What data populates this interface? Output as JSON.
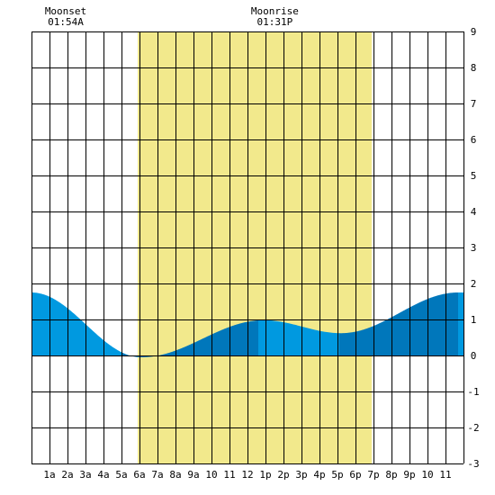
{
  "chart_data": {
    "type": "area",
    "x_unit": "hour",
    "xlim": [
      0,
      24
    ],
    "ylim": [
      -3,
      9
    ],
    "x_tick_labels": [
      "1a",
      "2a",
      "3a",
      "4a",
      "5a",
      "6a",
      "7a",
      "8a",
      "9a",
      "10",
      "11",
      "12",
      "1p",
      "2p",
      "3p",
      "4p",
      "5p",
      "6p",
      "7p",
      "8p",
      "9p",
      "10",
      "11"
    ],
    "y_ticks": [
      -3,
      -2,
      -1,
      0,
      1,
      2,
      3,
      4,
      5,
      6,
      7,
      8,
      9
    ],
    "daylight": {
      "start": 5.9,
      "end": 18.9,
      "color": "#f2e98c"
    },
    "moon_events": [
      {
        "label": "Moonset",
        "time": "01:54A",
        "hour": 1.9
      },
      {
        "label": "Moonrise",
        "time": "01:31P",
        "hour": 13.52
      }
    ],
    "tide_extremes": [
      {
        "hour": 0.0,
        "height": 1.75
      },
      {
        "hour": 6.1,
        "height": -0.05
      },
      {
        "hour": 12.9,
        "height": 0.98
      },
      {
        "hour": 17.2,
        "height": 0.62
      },
      {
        "hour": 23.7,
        "height": 1.75
      }
    ],
    "bands": [
      {
        "start": 0.0,
        "end": 5.0,
        "color": "#0099e0"
      },
      {
        "start": 5.0,
        "end": 12.6,
        "color": "#0077bb"
      },
      {
        "start": 12.6,
        "end": 17.1,
        "color": "#0099e0"
      },
      {
        "start": 17.1,
        "end": 23.7,
        "color": "#0077bb"
      },
      {
        "start": 23.7,
        "end": 24.0,
        "color": "#0099e0"
      }
    ],
    "colors": {
      "grid": "#000000",
      "background": "#ffffff"
    }
  }
}
